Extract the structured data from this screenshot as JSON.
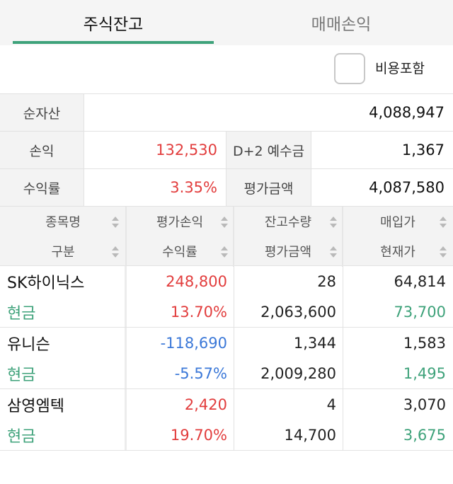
{
  "tabs": [
    {
      "label": "주식잔고",
      "active": true
    },
    {
      "label": "매매손익",
      "active": false
    }
  ],
  "options": {
    "include_cost_label": "비용포함",
    "include_cost_checked": false
  },
  "summary": {
    "net_assets_label": "순자산",
    "net_assets": "4,088,947",
    "pnl_label": "손익",
    "pnl": "132,530",
    "deposit_label": "D+2 예수금",
    "deposit": "1,367",
    "return_label": "수익률",
    "return": "3.35%",
    "eval_label": "평가금액",
    "eval": "4,087,580"
  },
  "columns": {
    "row1": [
      "종목명",
      "평가손익",
      "잔고수량",
      "매입가"
    ],
    "row2": [
      "구분",
      "수익률",
      "평가금액",
      "현재가"
    ]
  },
  "holdings": [
    {
      "name": "SK하이닉스",
      "type": "현금",
      "pnl": "248,800",
      "return": "13.70%",
      "qty": "28",
      "eval": "2,063,600",
      "buy_price": "64,814",
      "cur_price": "73,700"
    },
    {
      "name": "유니슨",
      "type": "현금",
      "pnl": "-118,690",
      "return": "-5.57%",
      "qty": "1,344",
      "eval": "2,009,280",
      "buy_price": "1,583",
      "cur_price": "1,495"
    },
    {
      "name": "삼영엠텍",
      "type": "현금",
      "pnl": "2,420",
      "return": "19.70%",
      "qty": "4",
      "eval": "14,700",
      "buy_price": "3,070",
      "cur_price": "3,675"
    }
  ],
  "colors": {
    "accent": "#3ea27a",
    "profit": "#e23d3d",
    "loss": "#3b78d8"
  }
}
